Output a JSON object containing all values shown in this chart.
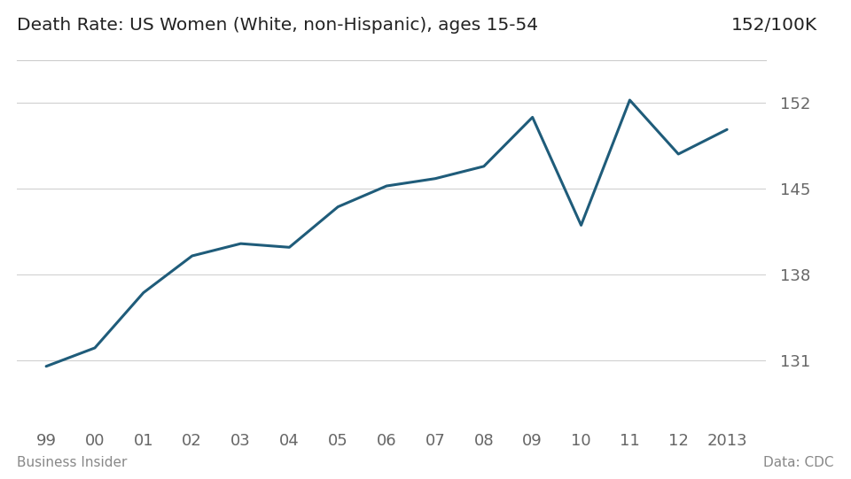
{
  "title": "Death Rate: US Women (White, non-Hispanic), ages 15-54",
  "top_right_label": "152/100K",
  "bottom_left_label": "Business Insider",
  "bottom_right_label": "Data: CDC",
  "x_labels": [
    "99",
    "00",
    "01",
    "02",
    "03",
    "04",
    "05",
    "06",
    "07",
    "08",
    "09",
    "10",
    "11",
    "12",
    "2013"
  ],
  "x_values": [
    1999,
    2000,
    2001,
    2002,
    2003,
    2004,
    2005,
    2006,
    2007,
    2008,
    2009,
    2010,
    2011,
    2012,
    2013
  ],
  "y_values": [
    130.5,
    132.0,
    136.5,
    139.5,
    140.5,
    140.2,
    143.5,
    145.2,
    145.8,
    146.8,
    150.8,
    142.0,
    152.2,
    147.8,
    149.8
  ],
  "y_ticks": [
    131,
    138,
    145,
    152
  ],
  "y_min": 126,
  "y_max": 154.5,
  "line_color": "#1F5C7A",
  "line_width": 2.2,
  "bg_color": "#ffffff",
  "grid_color": "#d0d0d0",
  "title_color": "#222222",
  "tick_color": "#666666",
  "label_color": "#888888",
  "title_fontsize": 14.5,
  "tick_fontsize": 13,
  "label_fontsize": 11,
  "separator_color": "#cccccc"
}
